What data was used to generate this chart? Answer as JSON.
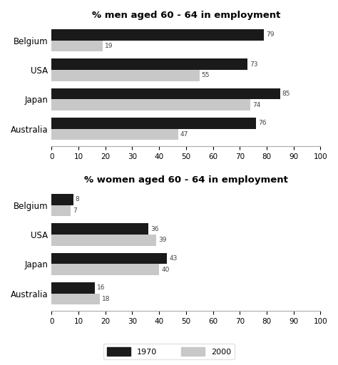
{
  "men_title": "% men aged 60 - 64 in employment",
  "women_title": "% women aged 60 - 64 in employment",
  "countries": [
    "Australia",
    "Japan",
    "USA",
    "Belgium"
  ],
  "men_1970": [
    76,
    85,
    73,
    79
  ],
  "men_2000": [
    47,
    74,
    55,
    19
  ],
  "women_1970": [
    16,
    43,
    36,
    8
  ],
  "women_2000": [
    18,
    40,
    39,
    7
  ],
  "color_1970": "#1a1a1a",
  "color_2000": "#c8c8c8",
  "xlim": [
    0,
    100
  ],
  "xticks": [
    0,
    10,
    20,
    30,
    40,
    50,
    60,
    70,
    80,
    90,
    100
  ],
  "bg_color": "#ffffff",
  "bar_height": 0.38,
  "title_fontsize": 9.5,
  "label_fontsize": 8.5,
  "tick_fontsize": 7.5,
  "value_fontsize": 6.5,
  "legend_labels": [
    "1970",
    "2000"
  ]
}
